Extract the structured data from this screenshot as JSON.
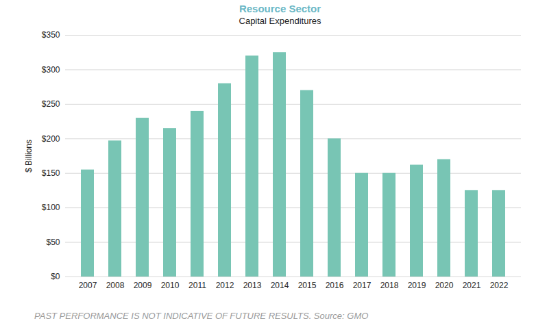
{
  "chart_data": {
    "type": "bar",
    "title": "Resource Sector",
    "subtitle": "Capital Expenditures",
    "ylabel": "$ Billions",
    "caption": "PAST PERFORMANCE IS NOT INDICATIVE OF FUTURE RESULTS. Source: GMO",
    "categories": [
      "2007",
      "2008",
      "2009",
      "2010",
      "2011",
      "2012",
      "2013",
      "2014",
      "2015",
      "2016",
      "2017",
      "2018",
      "2019",
      "2020",
      "2021",
      "2022"
    ],
    "values": [
      155,
      197,
      230,
      215,
      240,
      280,
      320,
      325,
      270,
      200,
      150,
      150,
      162,
      170,
      125,
      125
    ],
    "color": "#78c5b4",
    "ylim": [
      0,
      350
    ],
    "yticks": [
      {
        "value": 0,
        "label": "$0"
      },
      {
        "value": 50,
        "label": "$50"
      },
      {
        "value": 100,
        "label": "$100"
      },
      {
        "value": 150,
        "label": "$150"
      },
      {
        "value": 200,
        "label": "$200"
      },
      {
        "value": 250,
        "label": "$250"
      },
      {
        "value": 300,
        "label": "$300"
      },
      {
        "value": 350,
        "label": "$350"
      }
    ],
    "grid": true
  }
}
